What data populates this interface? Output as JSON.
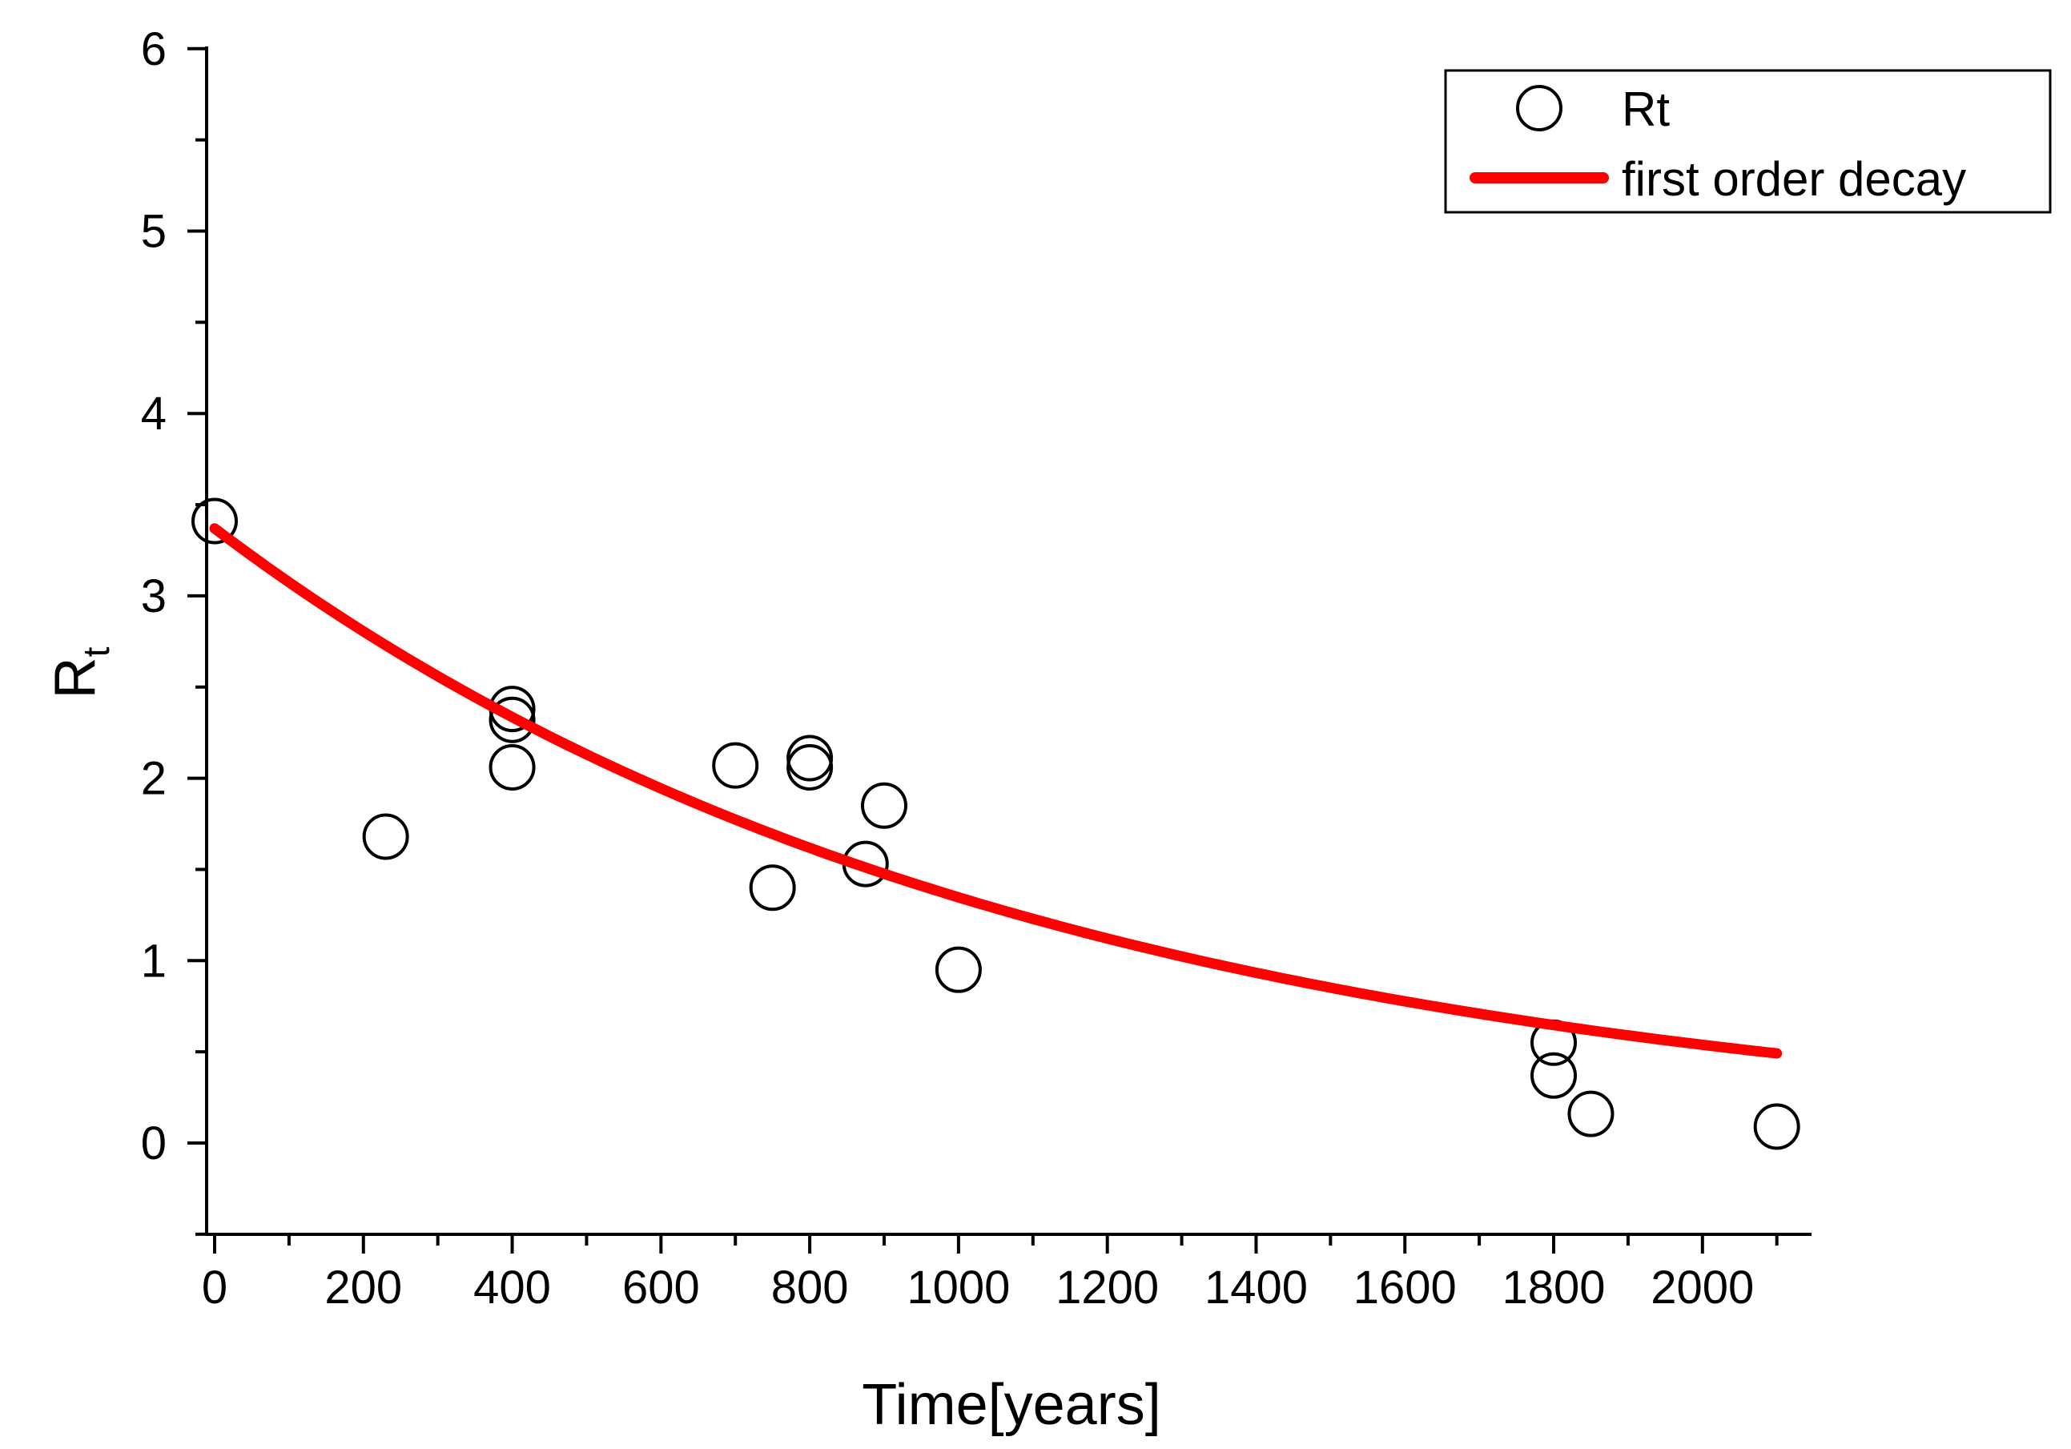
{
  "chart_data": {
    "type": "scatter",
    "title": "",
    "xlabel": "Time[years]",
    "ylabel_main": "R",
    "ylabel_sub": "t",
    "xlim": [
      -10,
      2150
    ],
    "ylim": [
      -0.5,
      6
    ],
    "x_ticks": [
      0,
      200,
      400,
      600,
      800,
      1000,
      1200,
      1400,
      1600,
      1800,
      2000
    ],
    "x_tick_labels": [
      "0",
      "200",
      "400",
      "600",
      "800",
      "1000",
      "1200",
      "1400",
      "1600",
      "1800",
      "2000"
    ],
    "y_ticks": [
      0,
      1,
      2,
      3,
      4,
      5,
      6
    ],
    "y_tick_labels": [
      "0",
      "1",
      "2",
      "3",
      "4",
      "5",
      "6"
    ],
    "x_minor_step": 100,
    "y_minor_step": 0.5,
    "legend_position": "top-right",
    "series": [
      {
        "name": "Rt",
        "kind": "scatter",
        "marker": "open-circle",
        "color": "#000000",
        "points": [
          [
            0,
            3.41
          ],
          [
            230,
            1.68
          ],
          [
            400,
            2.32
          ],
          [
            400,
            2.38
          ],
          [
            400,
            2.06
          ],
          [
            700,
            2.07
          ],
          [
            750,
            1.4
          ],
          [
            800,
            2.06
          ],
          [
            800,
            2.11
          ],
          [
            875,
            1.53
          ],
          [
            900,
            1.85
          ],
          [
            1000,
            0.95
          ],
          [
            1800,
            0.55
          ],
          [
            1800,
            0.37
          ],
          [
            1850,
            0.16
          ],
          [
            2100,
            0.09
          ]
        ]
      },
      {
        "name": "first order decay",
        "kind": "line",
        "color": "#ff0000",
        "model": "y = y0 * exp(-k * t)",
        "y0": 3.37,
        "k": 0.000917,
        "x_range": [
          0,
          2100
        ]
      }
    ]
  }
}
